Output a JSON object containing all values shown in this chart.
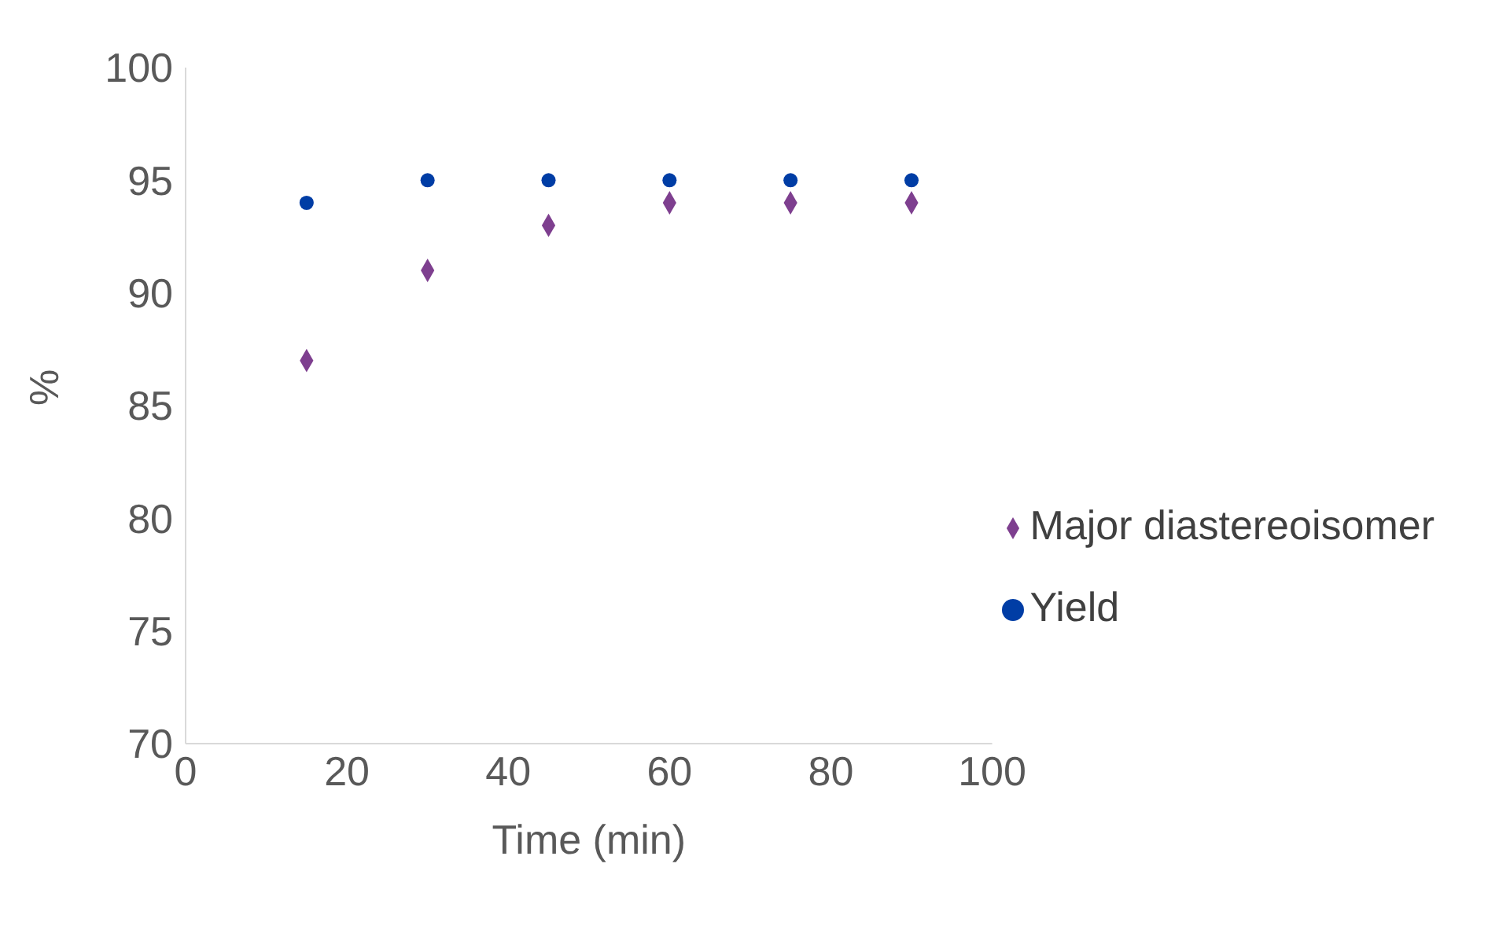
{
  "chart_data": {
    "type": "scatter",
    "xlabel": "Time (min)",
    "ylabel": "%",
    "x": [
      15,
      30,
      45,
      60,
      75,
      90
    ],
    "series": [
      {
        "name": "Yield",
        "color": "#003da5",
        "marker": "circle",
        "values": [
          94,
          95,
          95,
          95,
          95,
          95
        ]
      },
      {
        "name": "Major diastereoisomer",
        "color": "#7e3f8f",
        "marker": "diamond",
        "values": [
          87,
          91,
          93,
          94,
          94,
          94
        ]
      }
    ],
    "xlim": [
      0,
      100
    ],
    "xticks": [
      0,
      20,
      40,
      60,
      80,
      100
    ],
    "ylim": [
      70,
      100
    ],
    "yticks": [
      70,
      75,
      80,
      85,
      90,
      95,
      100
    ],
    "grid": false,
    "legend": "right"
  }
}
